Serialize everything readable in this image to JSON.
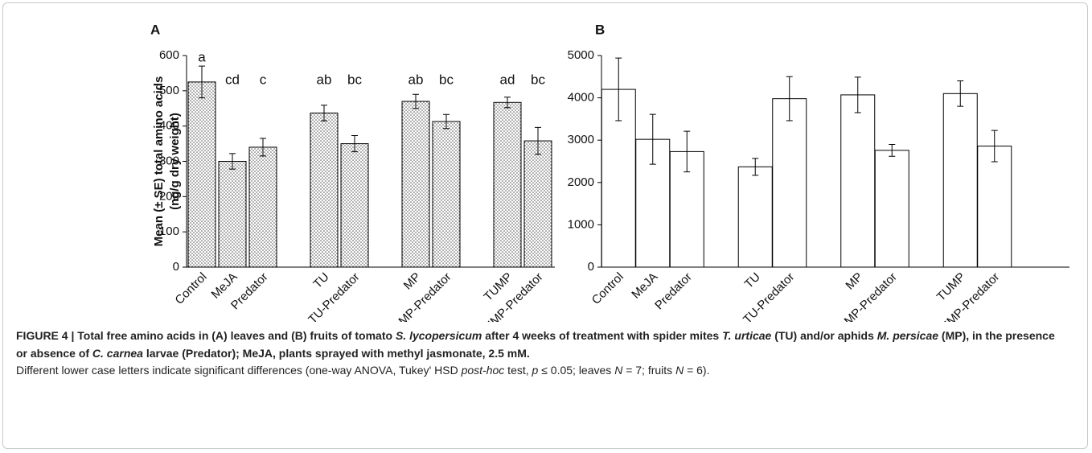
{
  "chart_data": [
    {
      "type": "bar",
      "label": "A",
      "ylabel": [
        "Mean (± SE) total amino acids",
        "(ng/g dry weight)"
      ],
      "categories": [
        "Control",
        "MeJA",
        "Predator",
        null,
        "TU",
        "TU-Predator",
        null,
        "MP",
        "MP-Predator",
        null,
        "TUMP",
        "TUMP-Predator"
      ],
      "values": [
        525,
        300,
        340,
        null,
        437,
        350,
        null,
        470,
        413,
        null,
        467,
        358
      ],
      "errors": [
        45,
        22,
        25,
        null,
        22,
        23,
        null,
        20,
        20,
        null,
        15,
        38
      ],
      "letters": [
        "a",
        "cd",
        "c",
        null,
        "ab",
        "bc",
        null,
        "ab",
        "bc",
        null,
        "ad",
        "bc"
      ],
      "pattern": "dots",
      "color": "#ffffff",
      "ylim": [
        0,
        600
      ],
      "yticks": [
        0,
        100,
        200,
        300,
        400,
        500,
        600
      ],
      "grid": false
    },
    {
      "type": "bar",
      "label": "B",
      "categories": [
        "Control",
        "MeJA",
        "Predator",
        null,
        "TU",
        "TU-Predator",
        null,
        "MP",
        "MP-Predator",
        null,
        "TUMP",
        "TUMP-Predator"
      ],
      "values": [
        4200,
        3020,
        2730,
        null,
        2370,
        3980,
        null,
        4070,
        2760,
        null,
        4100,
        2860
      ],
      "errors": [
        740,
        590,
        480,
        null,
        200,
        520,
        null,
        420,
        140,
        null,
        300,
        370
      ],
      "pattern": "none",
      "color": "#ffffff",
      "ylim": [
        0,
        5000
      ],
      "yticks": [
        0,
        1000,
        2000,
        3000,
        4000,
        5000
      ],
      "grid": false
    }
  ],
  "caption": [
    [
      {
        "text": "FIGURE 4 | Total free amino acids in (A) leaves and (B) fruits of tomato ",
        "bold": true
      },
      {
        "text": "S. lycopersicum",
        "bold": true,
        "italic": true
      },
      {
        "text": " after 4 weeks of treatment with spider mites ",
        "bold": true
      },
      {
        "text": "T. urticae",
        "bold": true,
        "italic": true
      },
      {
        "text": " (TU) and/or aphids ",
        "bold": true
      },
      {
        "text": "M. persicae",
        "bold": true,
        "italic": true
      },
      {
        "text": " (MP), in the presence or absence of ",
        "bold": true
      },
      {
        "text": "C. carnea",
        "bold": true,
        "italic": true
      },
      {
        "text": " larvae (Predator); MeJA, plants sprayed with methyl jasmonate, 2.5 mM.",
        "bold": true
      }
    ],
    [
      {
        "text": "Different lower case letters indicate significant differences (one-way ANOVA, Tukey' HSD "
      },
      {
        "text": "post-hoc",
        "italic": true
      },
      {
        "text": " test, "
      },
      {
        "text": "p",
        "italic": true
      },
      {
        "text": " ≤ 0.05; leaves "
      },
      {
        "text": "N",
        "italic": true
      },
      {
        "text": " = 7; fruits "
      },
      {
        "text": "N",
        "italic": true
      },
      {
        "text": " = 6)."
      }
    ]
  ]
}
